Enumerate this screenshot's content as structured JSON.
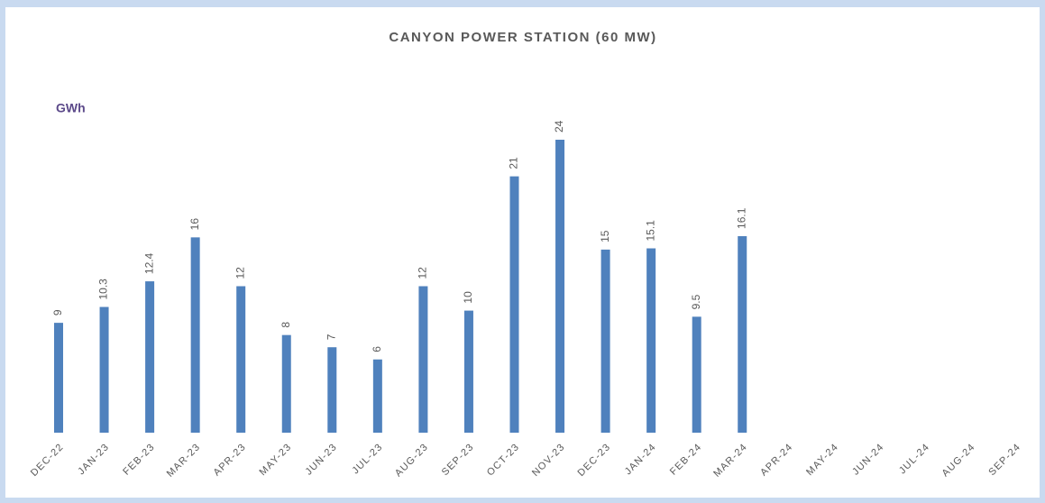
{
  "chart_data": {
    "type": "bar",
    "title": "CANYON POWER STATION (60 MW)",
    "y_label": "GWh",
    "categories": [
      "DEC-22",
      "JAN-23",
      "FEB-23",
      "MAR-23",
      "APR-23",
      "MAY-23",
      "JUN-23",
      "JUL-23",
      "AUG-23",
      "SEP-23",
      "OCT-23",
      "NOV-23",
      "DEC-23",
      "JAN-24",
      "FEB-24",
      "MAR-24",
      "APR-24",
      "MAY-24",
      "JUN-24",
      "JUL-24",
      "AUG-24",
      "SEP-24"
    ],
    "values": [
      9,
      10.3,
      12.4,
      16,
      12,
      8,
      7,
      6,
      12,
      10,
      21,
      24,
      15,
      15.1,
      9.5,
      16.1,
      null,
      null,
      null,
      null,
      null,
      null
    ],
    "color": "#4f81bd"
  }
}
